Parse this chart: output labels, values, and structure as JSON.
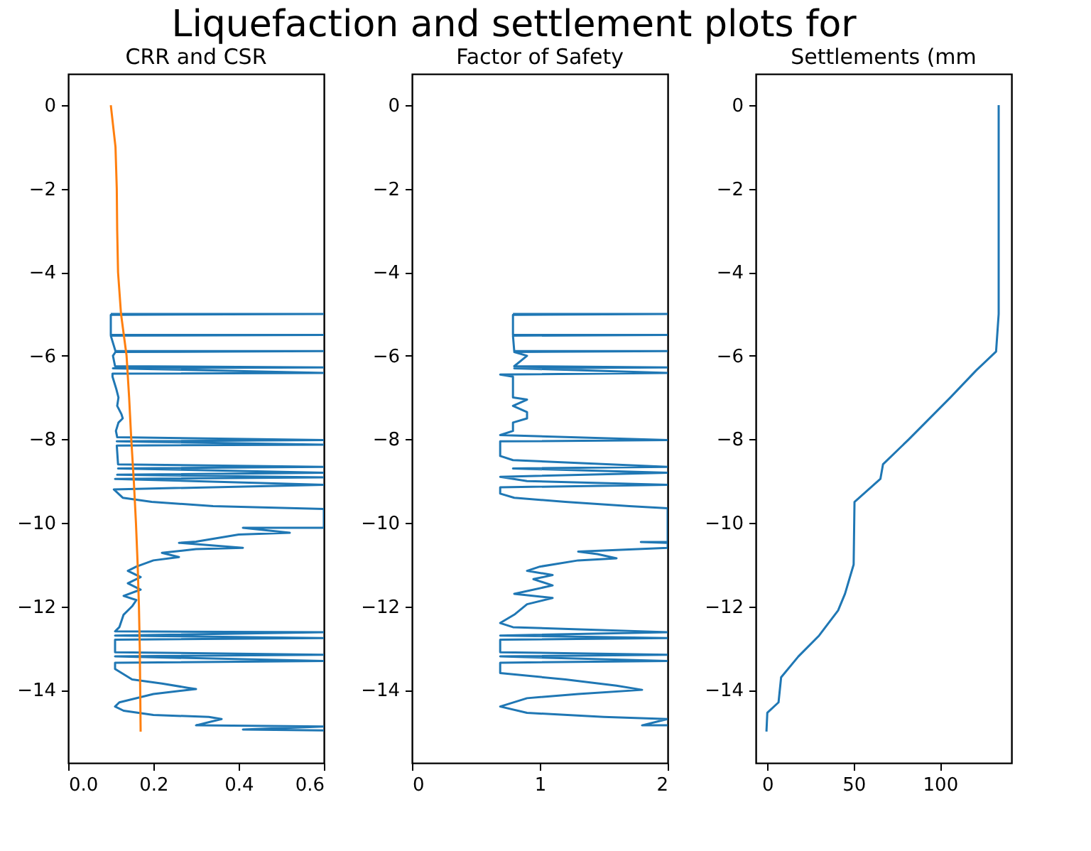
{
  "chart_data": [
    {
      "type": "other",
      "title": "Liquefaction and settlement plots for"
    },
    {
      "type": "line",
      "title": "CRR and CSR",
      "xlim": [
        0,
        0.6
      ],
      "xticks": [
        {
          "value": 0,
          "label": "0.0"
        },
        0.2,
        0.4,
        0.6
      ],
      "ylim": [
        -15.75,
        0.75
      ],
      "yticks": [
        {
          "value": 0,
          "label": "0"
        },
        {
          "value": -2,
          "label": "−2"
        },
        {
          "value": -4,
          "label": "−4"
        },
        {
          "value": -6,
          "label": "−6"
        },
        {
          "value": -8,
          "label": "−8"
        },
        {
          "value": -10,
          "label": "−10"
        },
        {
          "value": -12,
          "label": "−12"
        },
        {
          "value": -14,
          "label": "−14"
        }
      ],
      "grid": false,
      "series": [
        {
          "color": "#1f77b4",
          "x": [
            0.1,
            0.6,
            0.1,
            0.1,
            0.6,
            0.1,
            0.111,
            0.6,
            0.111,
            0.105,
            0.11,
            0.6,
            0.105,
            0.6,
            0.104,
            0.104,
            0.113,
            0.118,
            0.115,
            0.125,
            0.128,
            0.118,
            0.112,
            0.115,
            0.6,
            0.114,
            0.6,
            0.114,
            0.117,
            0.6,
            0.117,
            0.6,
            0.115,
            0.6,
            0.11,
            0.6,
            0.107,
            0.128,
            0.196,
            0.34,
            0.6,
            0.6,
            0.41,
            0.52,
            0.4,
            0.3,
            0.26,
            0.41,
            0.3,
            0.22,
            0.26,
            0.2,
            0.16,
            0.14,
            0.17,
            0.14,
            0.17,
            0.13,
            0.16,
            0.15,
            0.13,
            0.12,
            0.11,
            0.6,
            0.11,
            0.6,
            0.11,
            0.11,
            0.6,
            0.11,
            0.6,
            0.11,
            0.11,
            0.15,
            0.22,
            0.28,
            0.3,
            0.2,
            0.12,
            0.11,
            0.13,
            0.2,
            0.33,
            0.36,
            0.3,
            0.6,
            0.41,
            0.6
          ],
          "values": [
            -5.0,
            -5.0,
            -5.02,
            -5.5,
            -5.5,
            -5.52,
            -5.89,
            -5.89,
            -5.91,
            -6.0,
            -6.25,
            -6.28,
            -6.3,
            -6.41,
            -6.43,
            -6.5,
            -6.8,
            -7.0,
            -7.2,
            -7.4,
            -7.5,
            -7.6,
            -7.8,
            -7.95,
            -8.02,
            -8.05,
            -8.13,
            -8.15,
            -8.6,
            -8.66,
            -8.7,
            -8.8,
            -8.85,
            -8.91,
            -8.95,
            -9.09,
            -9.2,
            -9.4,
            -9.5,
            -9.6,
            -9.67,
            -10.12,
            -10.12,
            -10.24,
            -10.28,
            -10.45,
            -10.48,
            -10.6,
            -10.63,
            -10.72,
            -10.82,
            -10.9,
            -11.05,
            -11.15,
            -11.3,
            -11.45,
            -11.6,
            -11.75,
            -11.85,
            -12.0,
            -12.2,
            -12.5,
            -12.6,
            -12.62,
            -12.7,
            -12.76,
            -12.8,
            -13.1,
            -13.16,
            -13.2,
            -13.31,
            -13.35,
            -13.5,
            -13.75,
            -13.85,
            -13.95,
            -13.98,
            -14.1,
            -14.3,
            -14.4,
            -14.5,
            -14.6,
            -14.65,
            -14.7,
            -14.85,
            -14.88,
            -14.95,
            -14.97
          ]
        },
        {
          "color": "#ff7f0e",
          "x": [
            0.1,
            0.111,
            0.114,
            0.115,
            0.117,
            0.124,
            0.137,
            0.143,
            0.148,
            0.154,
            0.159,
            0.163,
            0.166,
            0.168,
            0.169,
            0.17
          ],
          "values": [
            0,
            -1,
            -2,
            -3,
            -4,
            -5,
            -6,
            -7,
            -8,
            -9,
            -10,
            -11,
            -12,
            -13,
            -14,
            -15
          ]
        }
      ]
    },
    {
      "type": "line",
      "title": "Factor of Safety",
      "xlim": [
        0,
        2
      ],
      "xticks": [
        0,
        1,
        2
      ],
      "ylim": [
        -15.75,
        0.75
      ],
      "yticks": [
        {
          "value": 0,
          "label": "0"
        },
        {
          "value": -2,
          "label": "−2"
        },
        {
          "value": -4,
          "label": "−4"
        },
        {
          "value": -6,
          "label": "−6"
        },
        {
          "value": -8,
          "label": "−8"
        },
        {
          "value": -10,
          "label": "−10"
        },
        {
          "value": -12,
          "label": "−12"
        },
        {
          "value": -14,
          "label": "−14"
        }
      ],
      "grid": false,
      "series": [
        {
          "color": "#1f77b4",
          "x": [
            0.79,
            2,
            0.79,
            0.79,
            2,
            0.79,
            0.8,
            2,
            0.8,
            0.9,
            0.8,
            2,
            0.8,
            2,
            0.69,
            0.79,
            0.79,
            0.9,
            0.79,
            0.9,
            0.9,
            0.79,
            0.79,
            0.69,
            2,
            0.69,
            0.69,
            0.79,
            2,
            0.79,
            2,
            0.69,
            0.9,
            2,
            0.69,
            0.69,
            0.8,
            1.2,
            1.7,
            2,
            2,
            1.79,
            2,
            2,
            1.3,
            1.45,
            1.6,
            1.3,
            1.0,
            0.9,
            1.1,
            0.95,
            1.1,
            0.8,
            1.1,
            0.9,
            0.8,
            0.69,
            0.79,
            2,
            0.69,
            2,
            0.69,
            0.69,
            2,
            0.69,
            2,
            0.69,
            0.69,
            1.2,
            1.6,
            1.8,
            1.3,
            0.9,
            0.69,
            0.9,
            1.5,
            2,
            1.8,
            2
          ],
          "values": [
            -5.0,
            -5.0,
            -5.02,
            -5.5,
            -5.5,
            -5.52,
            -5.89,
            -5.89,
            -5.91,
            -6.0,
            -6.25,
            -6.28,
            -6.3,
            -6.41,
            -6.45,
            -6.5,
            -7.0,
            -7.05,
            -7.2,
            -7.35,
            -7.5,
            -7.6,
            -7.8,
            -7.9,
            -8.02,
            -8.05,
            -8.4,
            -8.5,
            -8.66,
            -8.7,
            -8.8,
            -8.9,
            -9.0,
            -9.09,
            -9.15,
            -9.3,
            -9.4,
            -9.5,
            -9.6,
            -9.65,
            -10.46,
            -10.46,
            -10.48,
            -10.6,
            -10.69,
            -10.75,
            -10.85,
            -10.9,
            -11.05,
            -11.15,
            -11.25,
            -11.35,
            -11.5,
            -11.7,
            -11.8,
            -11.95,
            -12.2,
            -12.4,
            -12.5,
            -12.62,
            -12.7,
            -12.76,
            -12.8,
            -13.1,
            -13.16,
            -13.2,
            -13.31,
            -13.35,
            -13.6,
            -13.75,
            -13.9,
            -14.0,
            -14.1,
            -14.2,
            -14.4,
            -14.55,
            -14.65,
            -14.7,
            -14.85,
            -14.85
          ]
        }
      ]
    },
    {
      "type": "line",
      "title": "Settlements (mm",
      "xlim": [
        -6.7,
        141.4
      ],
      "xticks": [
        0,
        50,
        100
      ],
      "ylim": [
        -15.75,
        0.75
      ],
      "yticks": [
        {
          "value": 0,
          "label": "0"
        },
        {
          "value": -2,
          "label": "−2"
        },
        {
          "value": -4,
          "label": "−4"
        },
        {
          "value": -6,
          "label": "−6"
        },
        {
          "value": -8,
          "label": "−8"
        },
        {
          "value": -10,
          "label": "−10"
        },
        {
          "value": -12,
          "label": "−12"
        },
        {
          "value": -14,
          "label": "−14"
        }
      ],
      "grid": false,
      "series": [
        {
          "color": "#1f77b4",
          "x": [
            134,
            134,
            132.5,
            121,
            106,
            82,
            67,
            65.5,
            50.5,
            50,
            45,
            41,
            30,
            18,
            8,
            6.5,
            0,
            -0.5
          ],
          "values": [
            0,
            -5,
            -5.9,
            -6.35,
            -7,
            -8,
            -8.6,
            -8.95,
            -9.5,
            -11,
            -11.7,
            -12.1,
            -12.7,
            -13.2,
            -13.7,
            -14.3,
            -14.55,
            -15
          ]
        }
      ]
    }
  ]
}
